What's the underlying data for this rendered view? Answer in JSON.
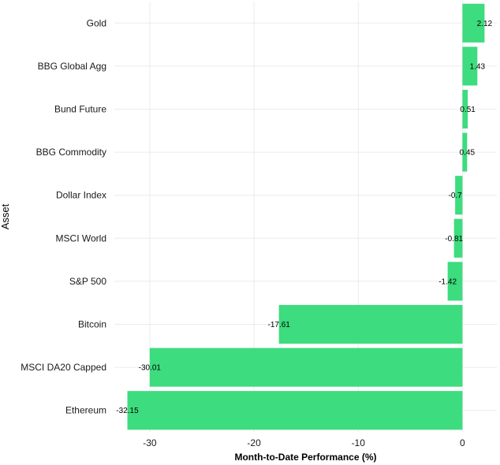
{
  "chart_data": {
    "type": "bar",
    "orientation": "horizontal",
    "categories": [
      "Gold",
      "BBG Global Agg",
      "Bund Future",
      "BBG Commodity",
      "Dollar Index",
      "MSCI World",
      "S&P 500",
      "Bitcoin",
      "MSCI DA20 Capped",
      "Ethereum"
    ],
    "values": [
      2.12,
      1.43,
      0.51,
      0.45,
      -0.7,
      -0.81,
      -1.42,
      -17.61,
      -30.01,
      -32.15
    ],
    "value_labels": [
      "2.12",
      "1.43",
      "0.51",
      "0.45",
      "-0.7",
      "-0.81",
      "-1.42",
      "-17.61",
      "-30.01",
      "-32.15"
    ],
    "xlabel": "Month-to-Date Performance (%)",
    "ylabel": "Asset",
    "xlim": [
      -33.4,
      3.3
    ],
    "xticks": [
      -30,
      -20,
      -10,
      0
    ],
    "xtick_labels": [
      "-30",
      "-20",
      "-10",
      "0"
    ],
    "bar_color": "#3ddc7e",
    "grid": true,
    "legend": "none"
  }
}
